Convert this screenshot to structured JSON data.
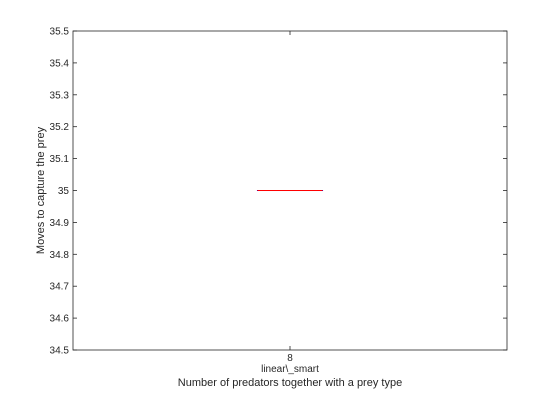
{
  "chart_data": {
    "type": "box",
    "title": "",
    "xlabel": "Number of predators together with a prey type",
    "ylabel": "Moves to capture the prey",
    "ylim": [
      34.5,
      35.5
    ],
    "yticks": [
      34.5,
      34.6,
      34.7,
      34.8,
      34.9,
      35,
      35.1,
      35.2,
      35.3,
      35.4,
      35.5
    ],
    "ytick_labels": [
      "34.5",
      "34.6",
      "34.7",
      "34.8",
      "34.9",
      "35",
      "35.1",
      "35.2",
      "35.3",
      "35.4",
      "35.5"
    ],
    "categories": [
      "8"
    ],
    "category_sublabels": [
      "linear\\_smart"
    ],
    "boxes": [
      {
        "category": "8",
        "q1": 35,
        "median": 35,
        "q3": 35,
        "whisker_low": 35,
        "whisker_high": 35
      }
    ],
    "colors": {
      "box": "#0000ff",
      "median": "#ff0000",
      "axis": "#262626"
    },
    "grid": false
  }
}
